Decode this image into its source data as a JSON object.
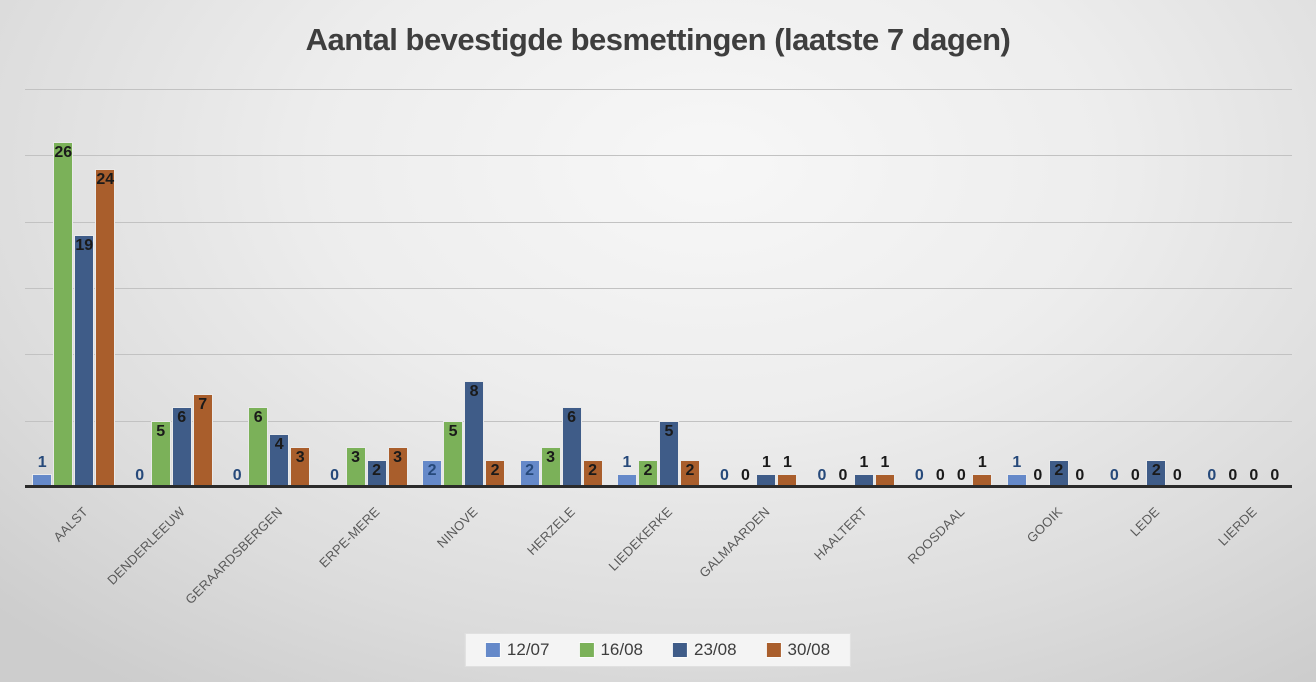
{
  "chart_data": {
    "type": "bar",
    "title": "Aantal bevestigde besmettingen (laatste 7 dagen)",
    "categories": [
      "AALST",
      "DENDERLEEUW",
      "GERAARDSBERGEN",
      "ERPE-MERE",
      "NINOVE",
      "HERZELE",
      "LIEDEKERKE",
      "GALMAARDEN",
      "HAALTERT",
      "ROOSDAAL",
      "GOOIK",
      "LEDE",
      "LIERDE"
    ],
    "series": [
      {
        "name": "12/07",
        "color": "#6589c9",
        "label_color": "#26497a",
        "values": [
          1,
          0,
          0,
          0,
          2,
          2,
          1,
          0,
          0,
          0,
          1,
          0,
          0
        ]
      },
      {
        "name": "16/08",
        "color": "#7bb159",
        "label_color": "#1a1a1a",
        "values": [
          26,
          5,
          6,
          3,
          5,
          3,
          2,
          0,
          0,
          0,
          0,
          0,
          0
        ]
      },
      {
        "name": "23/08",
        "color": "#3f5c88",
        "label_color": "#1a1a1a",
        "values": [
          19,
          6,
          4,
          2,
          8,
          6,
          5,
          1,
          1,
          0,
          2,
          2,
          0
        ]
      },
      {
        "name": "30/08",
        "color": "#a95e2c",
        "label_color": "#1a1a1a",
        "values": [
          24,
          7,
          3,
          3,
          2,
          2,
          2,
          1,
          1,
          1,
          0,
          0,
          0
        ]
      }
    ],
    "ylim": [
      0,
      30
    ],
    "grid_step": 5,
    "grid": true,
    "legend_position": "bottom",
    "data_labels": true,
    "axis_color": "#2b2b2b",
    "gridline_color": "#c2c2c2"
  }
}
